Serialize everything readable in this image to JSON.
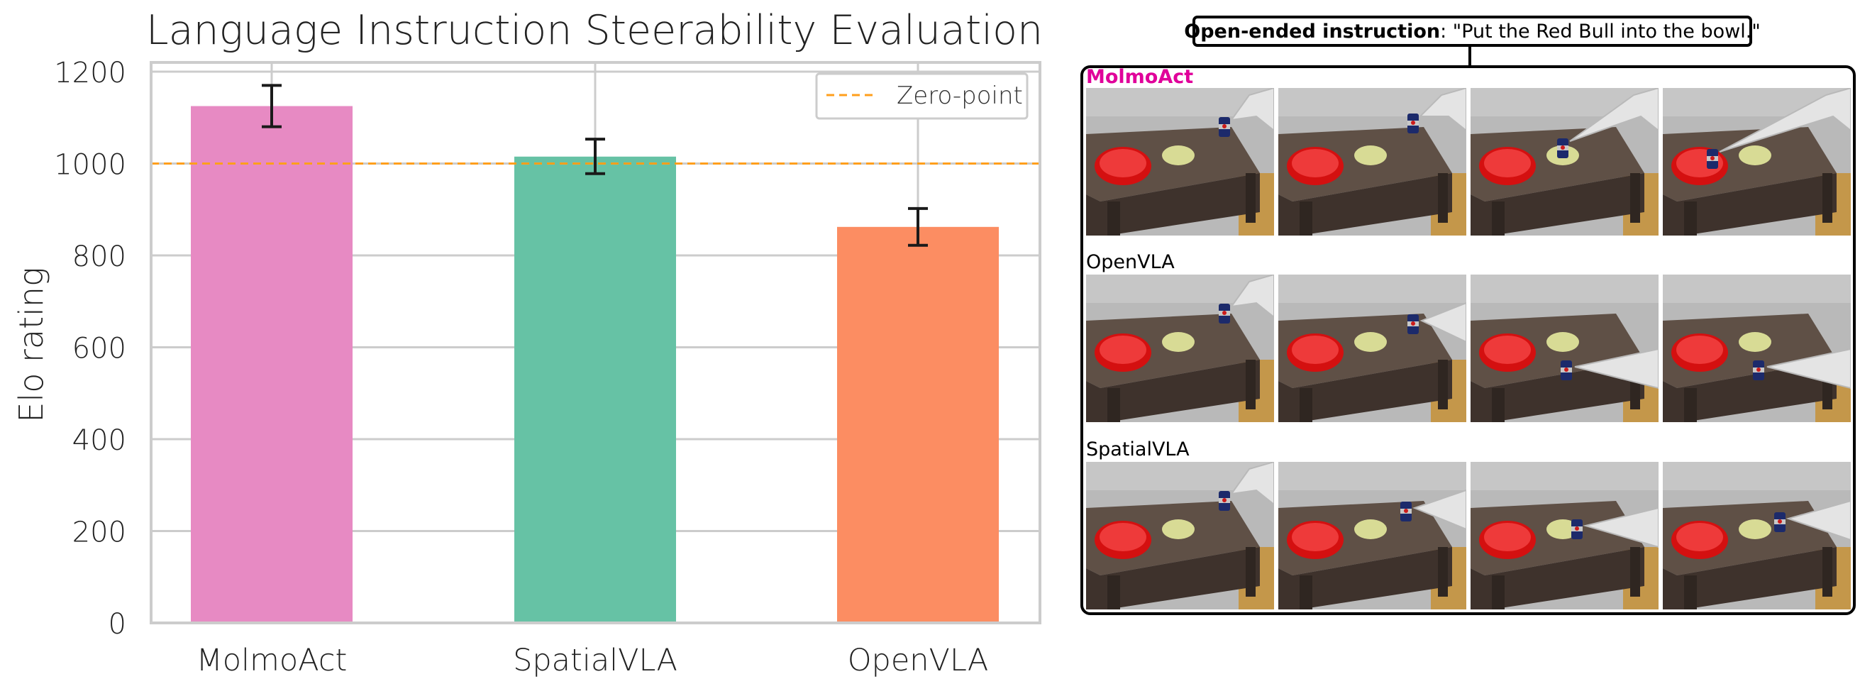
{
  "chart_data": {
    "type": "bar",
    "title": "Language Instruction Steerability Evaluation",
    "xlabel": "",
    "ylabel": "Elo rating",
    "categories": [
      "MolmoAct",
      "SpatialVLA",
      "OpenVLA"
    ],
    "values": [
      1125,
      1015,
      862
    ],
    "error_low": [
      1080,
      978,
      822
    ],
    "error_high": [
      1170,
      1053,
      902
    ],
    "colors": [
      "#e78ac3",
      "#66c2a5",
      "#fc8d62"
    ],
    "ylim": [
      0,
      1220
    ],
    "yticks": [
      0,
      200,
      400,
      600,
      800,
      1000,
      1200
    ],
    "reference_line": {
      "value": 1000,
      "label": "Zero-point",
      "color": "#ff9f1c",
      "style": "dashed"
    },
    "legend": "top-right",
    "grid": true
  },
  "panel": {
    "instruction_title": "Open-ended instruction",
    "instruction_text": ": \"Put the Red Bull into the bowl.\"",
    "rows": [
      {
        "label": "MolmoAct",
        "frames": [
          "frame-1",
          "frame-2",
          "frame-3",
          "frame-4"
        ],
        "can_positions": [
          "right-high",
          "center-right",
          "over-plate",
          "in-bowl"
        ]
      },
      {
        "label": "OpenVLA",
        "frames": [
          "frame-1",
          "frame-2",
          "frame-3",
          "frame-4"
        ],
        "can_positions": [
          "right-high",
          "right-mid",
          "right-low",
          "right-low"
        ]
      },
      {
        "label": "SpatialVLA",
        "frames": [
          "frame-1",
          "frame-2",
          "frame-3",
          "frame-4"
        ],
        "can_positions": [
          "right-high",
          "center-left",
          "left-center",
          "gripper-right"
        ]
      }
    ]
  }
}
